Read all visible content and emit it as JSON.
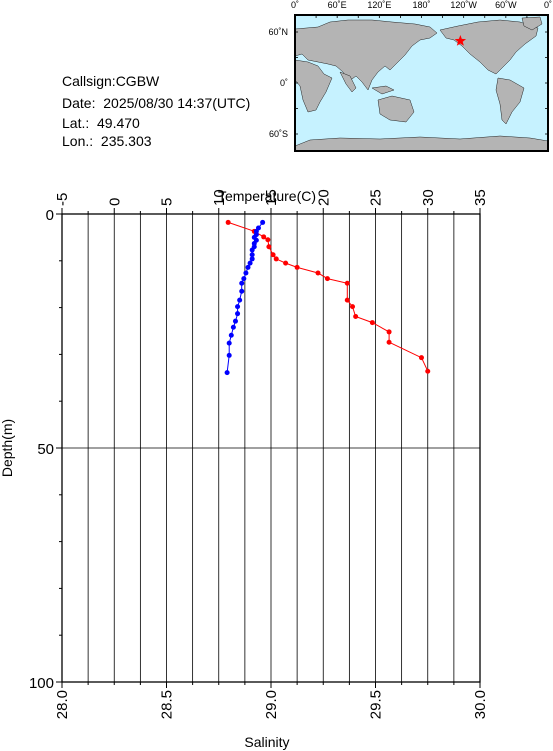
{
  "info": {
    "callsign": "Callsign:CGBW",
    "date": "Date:  2025/08/30 14:37(UTC)",
    "lat": "Lat.:  49.470",
    "lon": "Lon.:  235.303"
  },
  "map": {
    "top_ticks": [
      "0˚",
      "60˚E",
      "120˚E",
      "180˚",
      "120˚W",
      "60˚W",
      "0˚"
    ],
    "lat_ticks": [
      "60˚N",
      "0˚",
      "60˚S"
    ],
    "marker_lat": 49.47,
    "marker_lon": 235.303,
    "colors": {
      "ocean": "#c6f2ff",
      "land": "#b4b4b4",
      "marker": "#ff0000"
    }
  },
  "chart_data": {
    "type": "line",
    "top_axis_label": "Temperature(C)",
    "bottom_axis_label": "Salinity",
    "left_axis_label": "Depth(m)",
    "temperature_ticks": [
      "-5",
      "0",
      "5",
      "10",
      "15",
      "20",
      "25",
      "30",
      "35"
    ],
    "salinity_ticks": [
      "28.0",
      "28.5",
      "29.0",
      "29.5",
      "30.0"
    ],
    "depth_ticks": [
      "0",
      "50",
      "100"
    ],
    "temperature_range": [
      -5,
      35
    ],
    "salinity_range": [
      28.0,
      30.0
    ],
    "depth_range": [
      0,
      100
    ],
    "grid": true,
    "series": [
      {
        "variable": "temperature",
        "color": "#ff0000",
        "points": [
          {
            "value": 10.9,
            "depth": 1.8
          },
          {
            "value": 13.4,
            "depth": 3.7
          },
          {
            "value": 14.3,
            "depth": 4.9
          },
          {
            "value": 14.7,
            "depth": 5.5
          },
          {
            "value": 14.8,
            "depth": 7.0
          },
          {
            "value": 15.2,
            "depth": 8.7
          },
          {
            "value": 15.5,
            "depth": 9.6
          },
          {
            "value": 16.4,
            "depth": 10.5
          },
          {
            "value": 17.5,
            "depth": 11.4
          },
          {
            "value": 19.5,
            "depth": 12.6
          },
          {
            "value": 20.4,
            "depth": 13.8
          },
          {
            "value": 22.3,
            "depth": 14.8
          },
          {
            "value": 22.3,
            "depth": 18.4
          },
          {
            "value": 22.8,
            "depth": 19.8
          },
          {
            "value": 23.1,
            "depth": 21.9
          },
          {
            "value": 24.7,
            "depth": 23.2
          },
          {
            "value": 26.3,
            "depth": 25.2
          },
          {
            "value": 26.3,
            "depth": 27.4
          },
          {
            "value": 29.4,
            "depth": 30.7
          },
          {
            "value": 30.0,
            "depth": 33.6
          }
        ]
      },
      {
        "variable": "salinity",
        "color": "#0000ff",
        "points": [
          {
            "value": 28.96,
            "depth": 1.8
          },
          {
            "value": 28.94,
            "depth": 3.0
          },
          {
            "value": 28.93,
            "depth": 3.7
          },
          {
            "value": 28.93,
            "depth": 4.4
          },
          {
            "value": 28.92,
            "depth": 5.0
          },
          {
            "value": 28.93,
            "depth": 5.6
          },
          {
            "value": 28.92,
            "depth": 6.3
          },
          {
            "value": 28.92,
            "depth": 7.0
          },
          {
            "value": 28.91,
            "depth": 7.7
          },
          {
            "value": 28.91,
            "depth": 8.7
          },
          {
            "value": 28.91,
            "depth": 9.6
          },
          {
            "value": 28.9,
            "depth": 10.5
          },
          {
            "value": 28.89,
            "depth": 11.4
          },
          {
            "value": 28.88,
            "depth": 12.6
          },
          {
            "value": 28.87,
            "depth": 13.8
          },
          {
            "value": 28.86,
            "depth": 14.8
          },
          {
            "value": 28.86,
            "depth": 16.5
          },
          {
            "value": 28.85,
            "depth": 18.4
          },
          {
            "value": 28.84,
            "depth": 19.8
          },
          {
            "value": 28.84,
            "depth": 21.3
          },
          {
            "value": 28.83,
            "depth": 22.9
          },
          {
            "value": 28.82,
            "depth": 24.2
          },
          {
            "value": 28.81,
            "depth": 25.9
          },
          {
            "value": 28.8,
            "depth": 27.6
          },
          {
            "value": 28.8,
            "depth": 30.2
          },
          {
            "value": 28.79,
            "depth": 33.9
          }
        ]
      }
    ]
  }
}
